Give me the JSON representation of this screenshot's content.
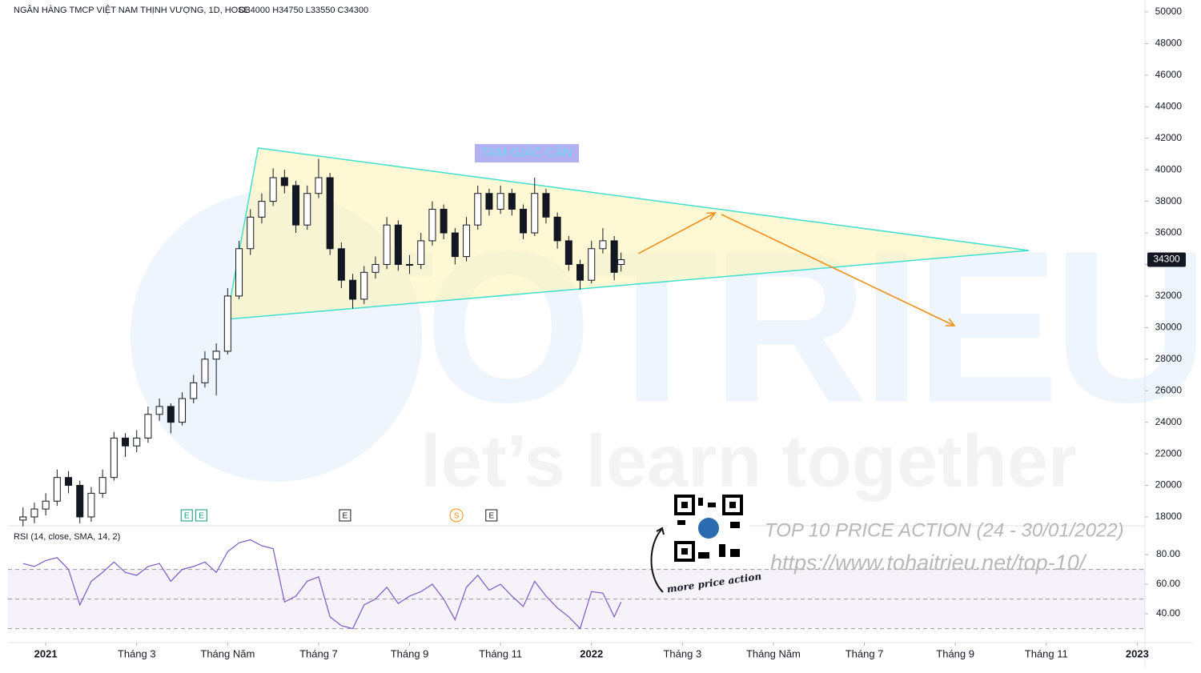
{
  "chart_data": {
    "type": "candlestick",
    "title": "NGÂN HÀNG TMCP VIỆT NAM THỊNH VƯỢNG, 1D, HOSE",
    "ohlc_header": "O34000 H34750 L33550 C34300",
    "x": [
      -0.5,
      -0.25,
      0,
      0.25,
      0.5,
      0.75,
      1,
      1.25,
      1.5,
      1.75,
      2,
      2.25,
      2.5,
      2.75,
      3,
      3.25,
      3.5,
      3.75,
      4,
      4.25,
      4.5,
      4.75,
      5,
      5.25,
      5.5,
      5.75,
      6,
      6.25,
      6.5,
      6.75,
      7,
      7.25,
      7.5,
      7.75,
      8,
      8.25,
      8.5,
      8.75,
      9,
      9.25,
      9.5,
      9.75,
      10,
      10.25,
      10.5,
      10.75,
      11,
      11.25,
      11.5,
      11.75,
      12,
      12.25,
      12.5,
      12.65
    ],
    "open": [
      17800,
      18000,
      18500,
      19000,
      20500,
      20000,
      18000,
      19500,
      20500,
      23000,
      22500,
      23000,
      24500,
      25000,
      24000,
      25500,
      26500,
      28000,
      28500,
      32000,
      35000,
      37000,
      38000,
      39500,
      39000,
      36500,
      38500,
      39500,
      35000,
      33000,
      31800,
      33500,
      34000,
      36500,
      34000,
      34000,
      35500,
      37500,
      36000,
      34500,
      36500,
      38500,
      37500,
      38500,
      37500,
      36000,
      38500,
      37000,
      35500,
      34000,
      33000,
      35000,
      35500,
      34000
    ],
    "high": [
      18600,
      18900,
      19500,
      21000,
      20900,
      20300,
      19900,
      21000,
      23400,
      23300,
      23500,
      25000,
      25500,
      25200,
      25900,
      27000,
      28500,
      29000,
      32500,
      35500,
      37500,
      38500,
      40100,
      40000,
      39300,
      39000,
      40700,
      39800,
      35400,
      33400,
      33900,
      34500,
      37000,
      36800,
      34600,
      36000,
      38000,
      37800,
      36300,
      37000,
      39000,
      38800,
      39000,
      38800,
      37800,
      39500,
      38800,
      37300,
      35800,
      34300,
      35500,
      36300,
      35800,
      34750
    ],
    "low": [
      17400,
      17600,
      18100,
      18700,
      19500,
      17600,
      17700,
      19200,
      20300,
      21800,
      22100,
      22700,
      24100,
      23300,
      23800,
      25200,
      26200,
      25700,
      28300,
      31800,
      34600,
      36600,
      37700,
      38500,
      36000,
      36200,
      38200,
      34600,
      32500,
      31200,
      31500,
      33100,
      33700,
      33600,
      33400,
      33700,
      35200,
      35600,
      34000,
      34200,
      36200,
      37100,
      37200,
      37100,
      35600,
      35800,
      36600,
      35000,
      33600,
      32400,
      32800,
      34700,
      33000,
      33550
    ],
    "close": [
      18000,
      18500,
      19000,
      20500,
      20000,
      18000,
      19500,
      20500,
      23000,
      22500,
      23000,
      24500,
      25000,
      24000,
      25500,
      26500,
      28000,
      28500,
      32000,
      35000,
      37000,
      38000,
      39500,
      39000,
      36500,
      38500,
      39500,
      35000,
      33000,
      31800,
      33500,
      34000,
      36500,
      34000,
      34000,
      35500,
      37500,
      36000,
      34500,
      36500,
      38500,
      37500,
      38500,
      37500,
      36000,
      38500,
      37000,
      35500,
      34000,
      33000,
      35000,
      35500,
      33500,
      34300
    ],
    "up_color": "#ffffff",
    "down_color": "#131722",
    "xlim": [
      -0.83,
      24.17
    ],
    "xticks": [
      {
        "value": 0,
        "label": "2021"
      },
      {
        "value": 2,
        "label": "Tháng 3"
      },
      {
        "value": 4,
        "label": "Tháng Năm"
      },
      {
        "value": 6,
        "label": "Tháng 7"
      },
      {
        "value": 8,
        "label": "Tháng 9"
      },
      {
        "value": 10,
        "label": "Tháng 11"
      },
      {
        "value": 12,
        "label": "2022"
      },
      {
        "value": 14,
        "label": "Tháng 3"
      },
      {
        "value": 16,
        "label": "Tháng Năm"
      },
      {
        "value": 18,
        "label": "Tháng 7"
      },
      {
        "value": 20,
        "label": "Tháng 9"
      },
      {
        "value": 22,
        "label": "Tháng 11"
      },
      {
        "value": 24,
        "label": "2023"
      }
    ],
    "ylim": [
      17440,
      50760
    ],
    "yticks": [
      18000,
      20000,
      22000,
      24000,
      26000,
      28000,
      30000,
      32000,
      34000,
      36000,
      38000,
      40000,
      42000,
      44000,
      46000,
      48000,
      50000
    ],
    "triangle": {
      "label": "TAM GIÁC CÂN",
      "x": [
        4.67,
        3.98,
        21.62
      ],
      "y": [
        41380,
        30526,
        34888
      ],
      "color": "#40e0d0"
    },
    "arrows": [
      {
        "x": [
          13.03,
          14.72
        ],
        "y": [
          34685,
          37272
        ]
      },
      {
        "x": [
          14.86,
          19.98
        ],
        "y": [
          37170,
          30120
        ]
      }
    ],
    "arrow_color": "#f0901a",
    "events": [
      {
        "label": "E",
        "x": 3.1,
        "color": "#089981"
      },
      {
        "label": "E",
        "x": 3.42,
        "color": "#089981"
      },
      {
        "label": "E",
        "x": 6.58,
        "color": "#131722"
      },
      {
        "label": "S",
        "x": 9.03,
        "color": "#f7931a"
      },
      {
        "label": "E",
        "x": 9.8,
        "color": "#131722"
      }
    ],
    "rsi": {
      "title": "RSI (14, close, SMA, 14, 2)",
      "color": "#7e57c2",
      "values": [
        74,
        72,
        76,
        78,
        70,
        46,
        62,
        68,
        75,
        68,
        66,
        72,
        74,
        62,
        70,
        72,
        75,
        68,
        82,
        88,
        90,
        86,
        84,
        48,
        52,
        62,
        65,
        38,
        32,
        30,
        46,
        50,
        58,
        47,
        52,
        55,
        60,
        50,
        36,
        58,
        66,
        56,
        60,
        52,
        45,
        62,
        52,
        44,
        38,
        30,
        55,
        54,
        38,
        48
      ],
      "ylim": [
        22.2,
        99.5
      ],
      "yticks": [
        {
          "value": 80,
          "label": "80.00"
        },
        {
          "value": 60,
          "label": "60.00"
        },
        {
          "value": 40,
          "label": "40.00"
        }
      ],
      "levels": [
        70,
        50,
        30
      ]
    },
    "watermark": {
      "brand": "TOTRIEU",
      "slogan": "let’s learn together"
    },
    "promo": {
      "headline": "TOP 10 PRICE ACTION (24 - 30/01/2022)",
      "url": "https://www.tohaitrieu.net/top-10/",
      "caption": "more price action"
    }
  }
}
